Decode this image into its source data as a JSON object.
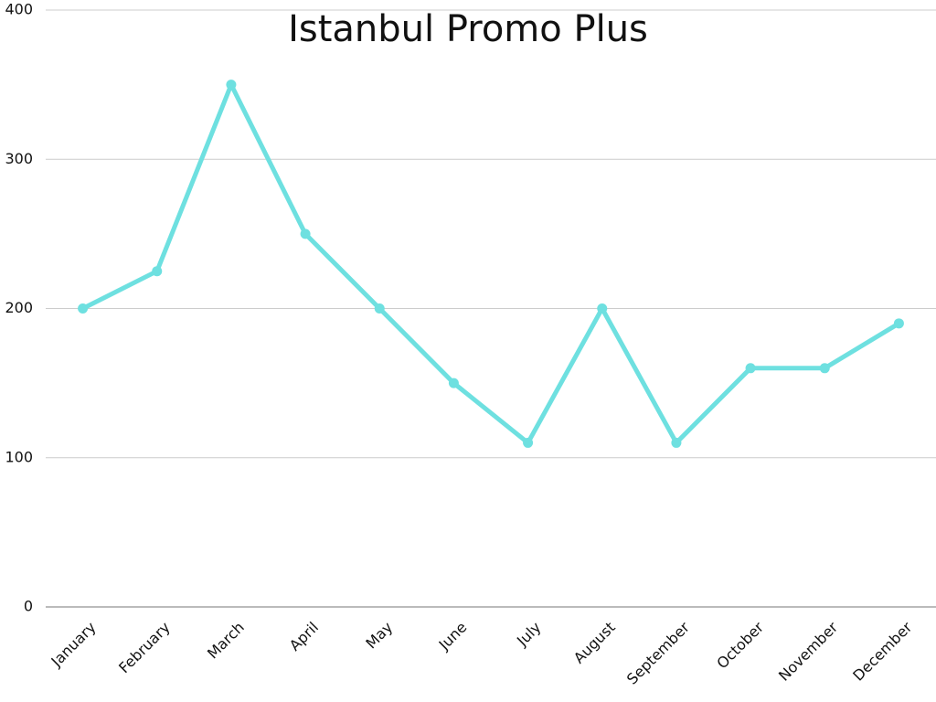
{
  "chart_data": {
    "type": "line",
    "title": "Istanbul Promo Plus",
    "categories": [
      "January",
      "February",
      "March",
      "April",
      "May",
      "June",
      "July",
      "August",
      "September",
      "October",
      "November",
      "December"
    ],
    "values": [
      200,
      225,
      350,
      250,
      200,
      150,
      110,
      200,
      110,
      160,
      160,
      190
    ],
    "color": "#6ee0e0",
    "ylim": [
      0,
      400
    ],
    "yticks": [
      0,
      100,
      200,
      300,
      400
    ],
    "grid": true
  }
}
